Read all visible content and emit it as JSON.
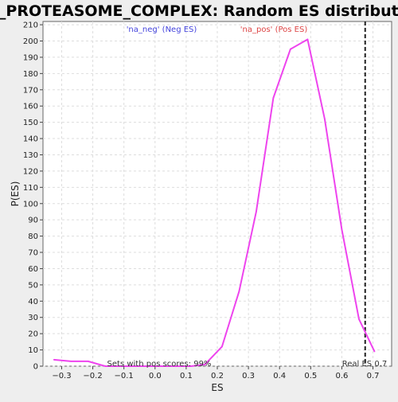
{
  "chart_data": {
    "type": "line",
    "title": "GO_PROTEASOME_COMPLEX: Random ES distribution",
    "xlabel": "ES",
    "ylabel": "P(ES)",
    "xlim": [
      -0.36,
      0.76
    ],
    "ylim": [
      0,
      212
    ],
    "x_ticks": [
      -0.3,
      -0.2,
      -0.1,
      0.0,
      0.1,
      0.2,
      0.3,
      0.4,
      0.5,
      0.6,
      0.7
    ],
    "x_tick_labels": [
      "−0.3",
      "−0.2",
      "−0.1",
      "0.0",
      "0.1",
      "0.2",
      "0.3",
      "0.4",
      "0.5",
      "0.6",
      "0.7"
    ],
    "y_ticks": [
      0,
      10,
      20,
      30,
      40,
      50,
      60,
      70,
      80,
      90,
      100,
      110,
      120,
      130,
      140,
      150,
      160,
      170,
      180,
      190,
      200,
      210
    ],
    "y_tick_labels": [
      "0",
      "10",
      "20",
      "30",
      "40",
      "50",
      "60",
      "70",
      "80",
      "90",
      "100",
      "110",
      "120",
      "130",
      "140",
      "150",
      "160",
      "170",
      "180",
      "190",
      "200",
      "210"
    ],
    "grid": true,
    "series": [
      {
        "color": "#ee44ee",
        "x": [
          -0.325,
          -0.27,
          -0.215,
          -0.16,
          -0.105,
          -0.05,
          0.005,
          0.06,
          0.115,
          0.16,
          0.215,
          0.27,
          0.325,
          0.38,
          0.435,
          0.49,
          0.545,
          0.6,
          0.655,
          0.705
        ],
        "y": [
          4,
          3,
          3,
          0,
          0,
          0,
          0,
          0,
          0,
          1,
          12,
          46,
          95,
          165,
          195,
          201,
          152,
          84,
          29,
          9
        ]
      }
    ],
    "real_es": {
      "x": 0.675,
      "color": "#222222",
      "label": "Real ES 0.7"
    },
    "annotations": {
      "neg_label": "'na_neg' (Neg ES)",
      "neg_color": "#4444dd",
      "pos_label": "'na_pos' (Pos ES)",
      "pos_color": "#dd4444",
      "sets_text": "Sets with pos scores: 99%"
    }
  }
}
